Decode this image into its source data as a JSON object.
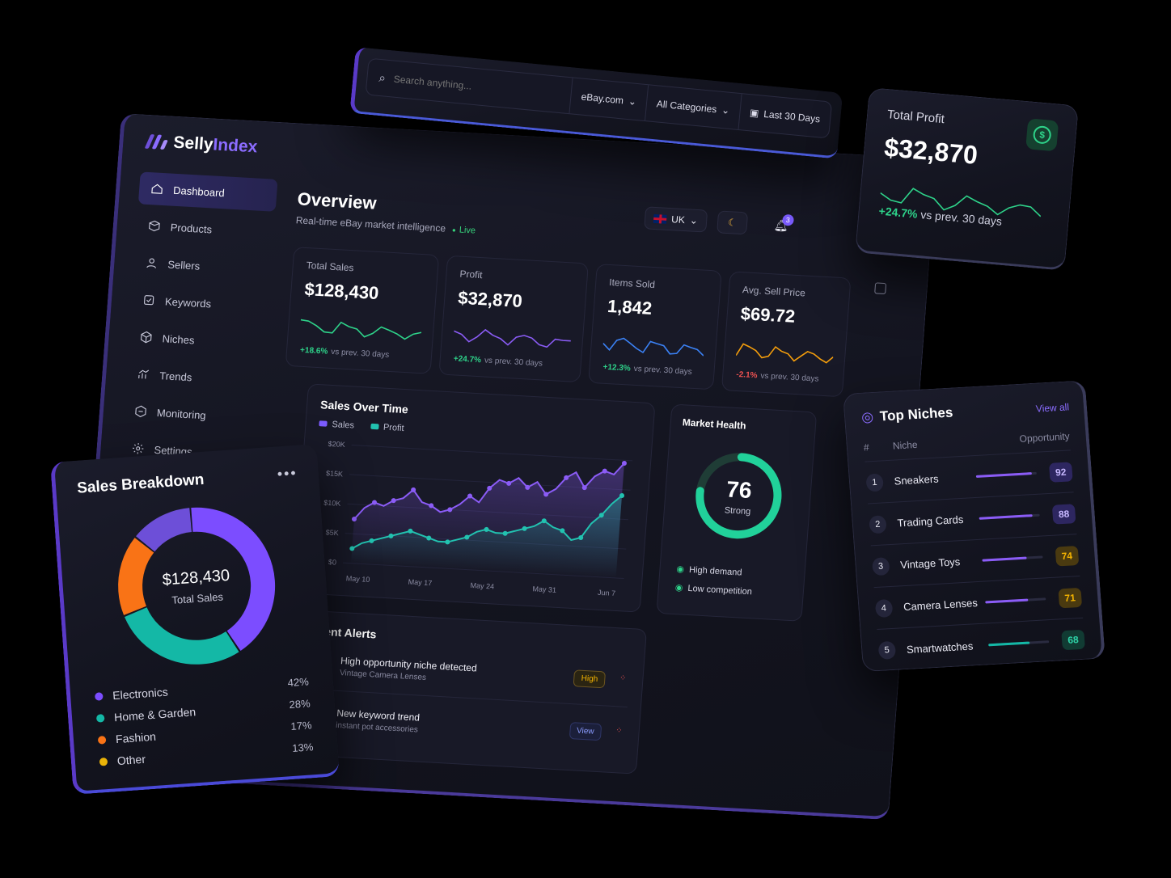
{
  "brand": {
    "name_a": "Selly",
    "name_b": "Index"
  },
  "sidebar": {
    "items": [
      {
        "label": "Dashboard",
        "icon": "home-icon"
      },
      {
        "label": "Products",
        "icon": "box-icon"
      },
      {
        "label": "Sellers",
        "icon": "user-icon"
      },
      {
        "label": "Keywords",
        "icon": "tag-icon"
      },
      {
        "label": "Niches",
        "icon": "cube-icon"
      },
      {
        "label": "Trends",
        "icon": "trend-icon"
      },
      {
        "label": "Monitoring",
        "icon": "monitor-icon"
      },
      {
        "label": "Settings",
        "icon": "gear-icon"
      }
    ]
  },
  "search": {
    "placeholder": "Search anything...",
    "marketplace": "eBay.com",
    "category": "All Categories",
    "range": "Last 30 Days"
  },
  "overview": {
    "title": "Overview",
    "subtitle": "Real-time eBay market intelligence",
    "live": "Live",
    "locale": "UK",
    "notifications": "3"
  },
  "kpis": [
    {
      "label": "Total Sales",
      "value": "$128,430",
      "change": "+18.6%",
      "note": "vs prev. 30 days",
      "color": "#2ed38a"
    },
    {
      "label": "Profit",
      "value": "$32,870",
      "change": "+24.7%",
      "note": "vs prev. 30 days",
      "color": "#8b5cf6"
    },
    {
      "label": "Items Sold",
      "value": "1,842",
      "change": "+12.3%",
      "note": "vs prev. 30 days",
      "color": "#3b82f6"
    },
    {
      "label": "Avg. Sell Price",
      "value": "$69.72",
      "change": "-2.1%",
      "note": "vs prev. 30 days",
      "color": "#f59e0b"
    }
  ],
  "sales_over_time": {
    "title": "Sales Over Time",
    "legend": [
      "Sales",
      "Profit"
    ],
    "y_ticks": [
      "$20K",
      "$15K",
      "$10K",
      "$5K",
      "$0"
    ],
    "x_ticks": [
      "May 10",
      "May 17",
      "May 24",
      "May 31",
      "Jun 7"
    ]
  },
  "chart_data": {
    "type": "line",
    "title": "Sales Over Time",
    "ylim": [
      0,
      20000
    ],
    "series": [
      {
        "name": "Sales",
        "values": [
          7500,
          9500,
          10500,
          10000,
          11000,
          11500,
          13000,
          11000,
          10500,
          9500,
          10000,
          11000,
          12500,
          11500,
          14000,
          15500,
          15000,
          16000,
          14500,
          15500,
          13500,
          14500,
          16500,
          17500,
          15000,
          17000,
          18000,
          17500,
          19500
        ]
      },
      {
        "name": "Profit",
        "values": [
          2500,
          3500,
          4000,
          4500,
          5000,
          5500,
          6000,
          5500,
          5000,
          4500,
          4500,
          5000,
          5500,
          6500,
          7000,
          6500,
          6500,
          7000,
          7500,
          8000,
          9000,
          8000,
          7500,
          6000,
          6500,
          9000,
          10500,
          12500,
          14000
        ]
      }
    ]
  },
  "market_health": {
    "title": "Market Health",
    "score": 76,
    "score_label": "Strong",
    "items": [
      "High demand",
      "Low competition"
    ]
  },
  "alerts": {
    "title": "Recent Alerts",
    "items": [
      {
        "title": "High opportunity niche detected",
        "sub": "Vintage Camera Lenses",
        "action": "High"
      },
      {
        "title": "New keyword trend",
        "sub": "instant pot accessories",
        "action": "View"
      }
    ]
  },
  "total_profit": {
    "label": "Total Profit",
    "value": "$32,870",
    "change": "+24.7%",
    "note": "vs prev. 30 days",
    "icon": "dollar-icon"
  },
  "breakdown": {
    "title": "Sales Breakdown",
    "center_value": "$128,430",
    "center_label": "Total Sales",
    "items": [
      {
        "name": "Electronics",
        "pct": "42%",
        "value": 42,
        "color": "#7c4dff"
      },
      {
        "name": "Home & Garden",
        "pct": "28%",
        "value": 28,
        "color": "#14b8a6"
      },
      {
        "name": "Fashion",
        "pct": "17%",
        "value": 17,
        "color": "#f97316"
      },
      {
        "name": "Other",
        "pct": "13%",
        "value": 13,
        "color": "#6d4fd8"
      }
    ]
  },
  "niches": {
    "title": "Top Niches",
    "view_all": "View all",
    "col_rank": "#",
    "col_niche": "Niche",
    "col_opp": "Opportunity",
    "items": [
      {
        "rank": "1",
        "name": "Sneakers",
        "score": "92",
        "level": 0.92,
        "color": "#8b5cf6",
        "bg": "#2d2660"
      },
      {
        "rank": "2",
        "name": "Trading Cards",
        "score": "88",
        "level": 0.88,
        "color": "#8b5cf6",
        "bg": "#2d2660"
      },
      {
        "rank": "3",
        "name": "Vintage Toys",
        "score": "74",
        "level": 0.74,
        "color": "#8b5cf6",
        "bg": "#4a3a10"
      },
      {
        "rank": "4",
        "name": "Camera Lenses",
        "score": "71",
        "level": 0.71,
        "color": "#8b5cf6",
        "bg": "#4a3a10"
      },
      {
        "rank": "5",
        "name": "Smartwatches",
        "score": "68",
        "level": 0.68,
        "color": "#14b8a6",
        "bg": "#113b33"
      }
    ]
  }
}
